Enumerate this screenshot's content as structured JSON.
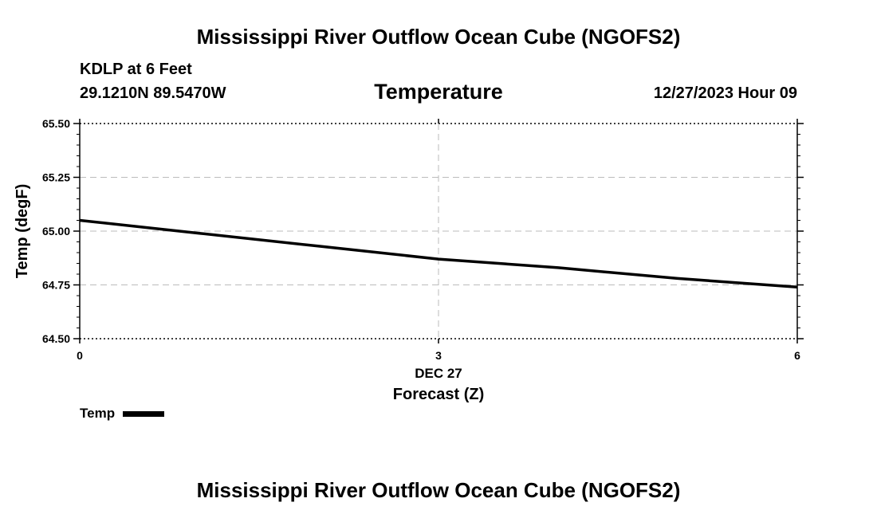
{
  "header": {
    "title": "Mississippi River Outflow Ocean Cube (NGOFS2)",
    "station": "KDLP at 6 Feet",
    "coordinates": "29.1210N  89.5470W",
    "parameter": "Temperature",
    "datetime": "12/27/2023 Hour 09"
  },
  "footer": {
    "title": "Mississippi River Outflow Ocean Cube (NGOFS2)"
  },
  "legend": {
    "label": "Temp"
  },
  "chart_data": {
    "type": "line",
    "title": "Temperature",
    "xlabel": "Forecast (Z)",
    "ylabel": "Temp (degF)",
    "xlim": [
      0,
      6
    ],
    "ylim": [
      64.5,
      65.5
    ],
    "x_ticks": [
      0,
      3,
      6
    ],
    "x_tick_labels": [
      "0",
      "3",
      "6"
    ],
    "x_date_label": "DEC 27",
    "y_ticks": [
      64.5,
      64.75,
      65.0,
      65.25,
      65.5
    ],
    "y_tick_labels": [
      "64.50",
      "64.75",
      "65.00",
      "65.25",
      "65.50"
    ],
    "grid": true,
    "series": [
      {
        "name": "Temp",
        "color": "#000000",
        "x": [
          0,
          1,
          2,
          3,
          4,
          5,
          6
        ],
        "values": [
          65.05,
          64.99,
          64.93,
          64.87,
          64.83,
          64.78,
          64.74
        ]
      }
    ]
  }
}
